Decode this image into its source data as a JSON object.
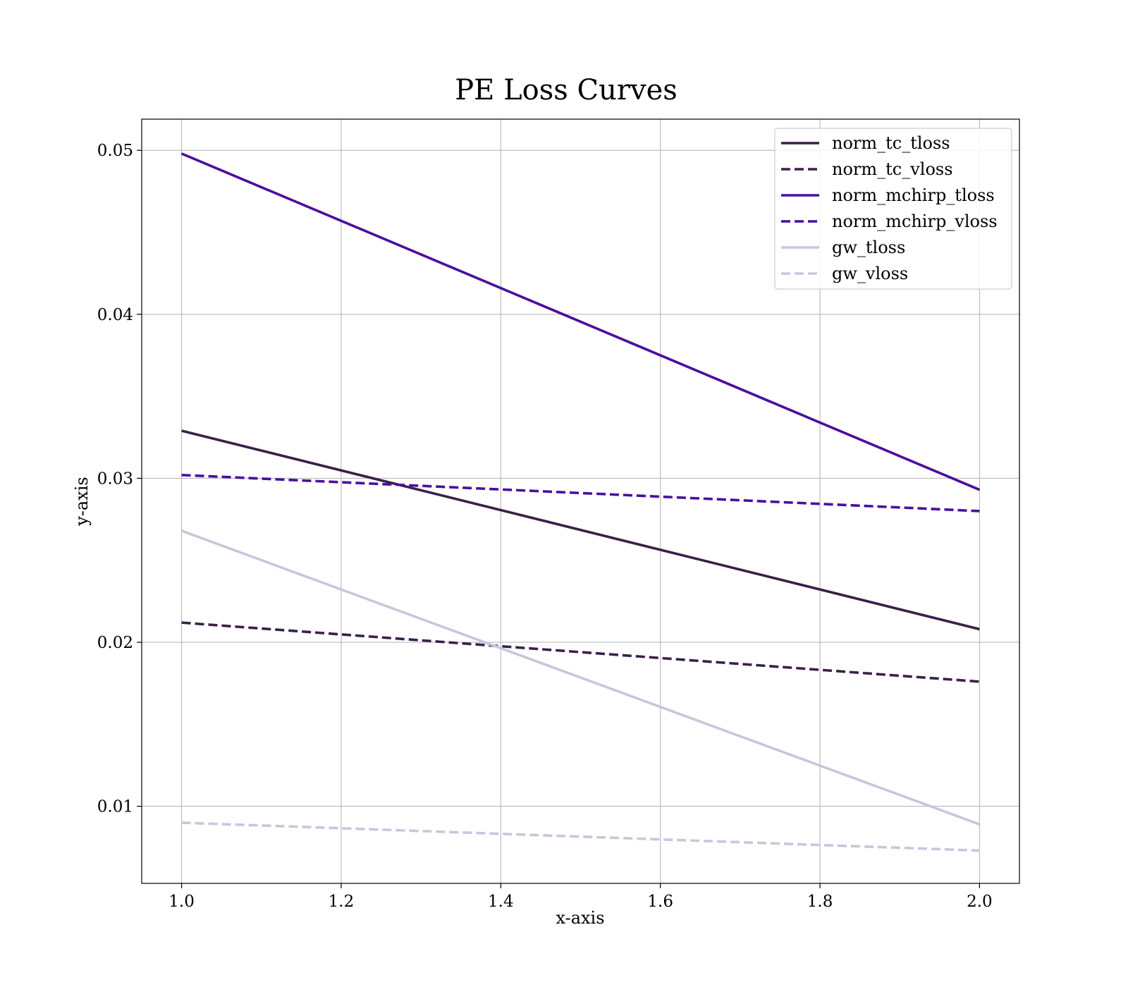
{
  "chart_data": {
    "type": "line",
    "title": "PE Loss Curves",
    "xlabel": "x-axis",
    "ylabel": "y-axis",
    "xlim": [
      0.95,
      2.05
    ],
    "ylim": [
      0.0053,
      0.0519
    ],
    "xticks": [
      1.0,
      1.2,
      1.4,
      1.6,
      1.8,
      2.0
    ],
    "xtick_labels": [
      "1.0",
      "1.2",
      "1.4",
      "1.6",
      "1.8",
      "2.0"
    ],
    "yticks": [
      0.01,
      0.02,
      0.03,
      0.04,
      0.05
    ],
    "ytick_labels": [
      "0.01",
      "0.02",
      "0.03",
      "0.04",
      "0.05"
    ],
    "grid": true,
    "legend_position": "top-right",
    "series": [
      {
        "name": "norm_tc_tloss",
        "x": [
          1.0,
          2.0
        ],
        "y": [
          0.0329,
          0.0208
        ],
        "color": "#3b1f4a",
        "dashed": false
      },
      {
        "name": "norm_tc_vloss",
        "x": [
          1.0,
          2.0
        ],
        "y": [
          0.0212,
          0.0176
        ],
        "color": "#3b1f4a",
        "dashed": true
      },
      {
        "name": "norm_mchirp_tloss",
        "x": [
          1.0,
          2.0
        ],
        "y": [
          0.0498,
          0.0293
        ],
        "color": "#4a0e9e",
        "dashed": false
      },
      {
        "name": "norm_mchirp_vloss",
        "x": [
          1.0,
          2.0
        ],
        "y": [
          0.0302,
          0.028
        ],
        "color": "#4a0e9e",
        "dashed": true
      },
      {
        "name": "gw_tloss",
        "x": [
          1.0,
          2.0
        ],
        "y": [
          0.0268,
          0.0089
        ],
        "color": "#c5c8dc",
        "dashed": false
      },
      {
        "name": "gw_vloss",
        "x": [
          1.0,
          2.0
        ],
        "y": [
          0.009,
          0.0073
        ],
        "color": "#c5c8dc",
        "dashed": true
      }
    ]
  }
}
